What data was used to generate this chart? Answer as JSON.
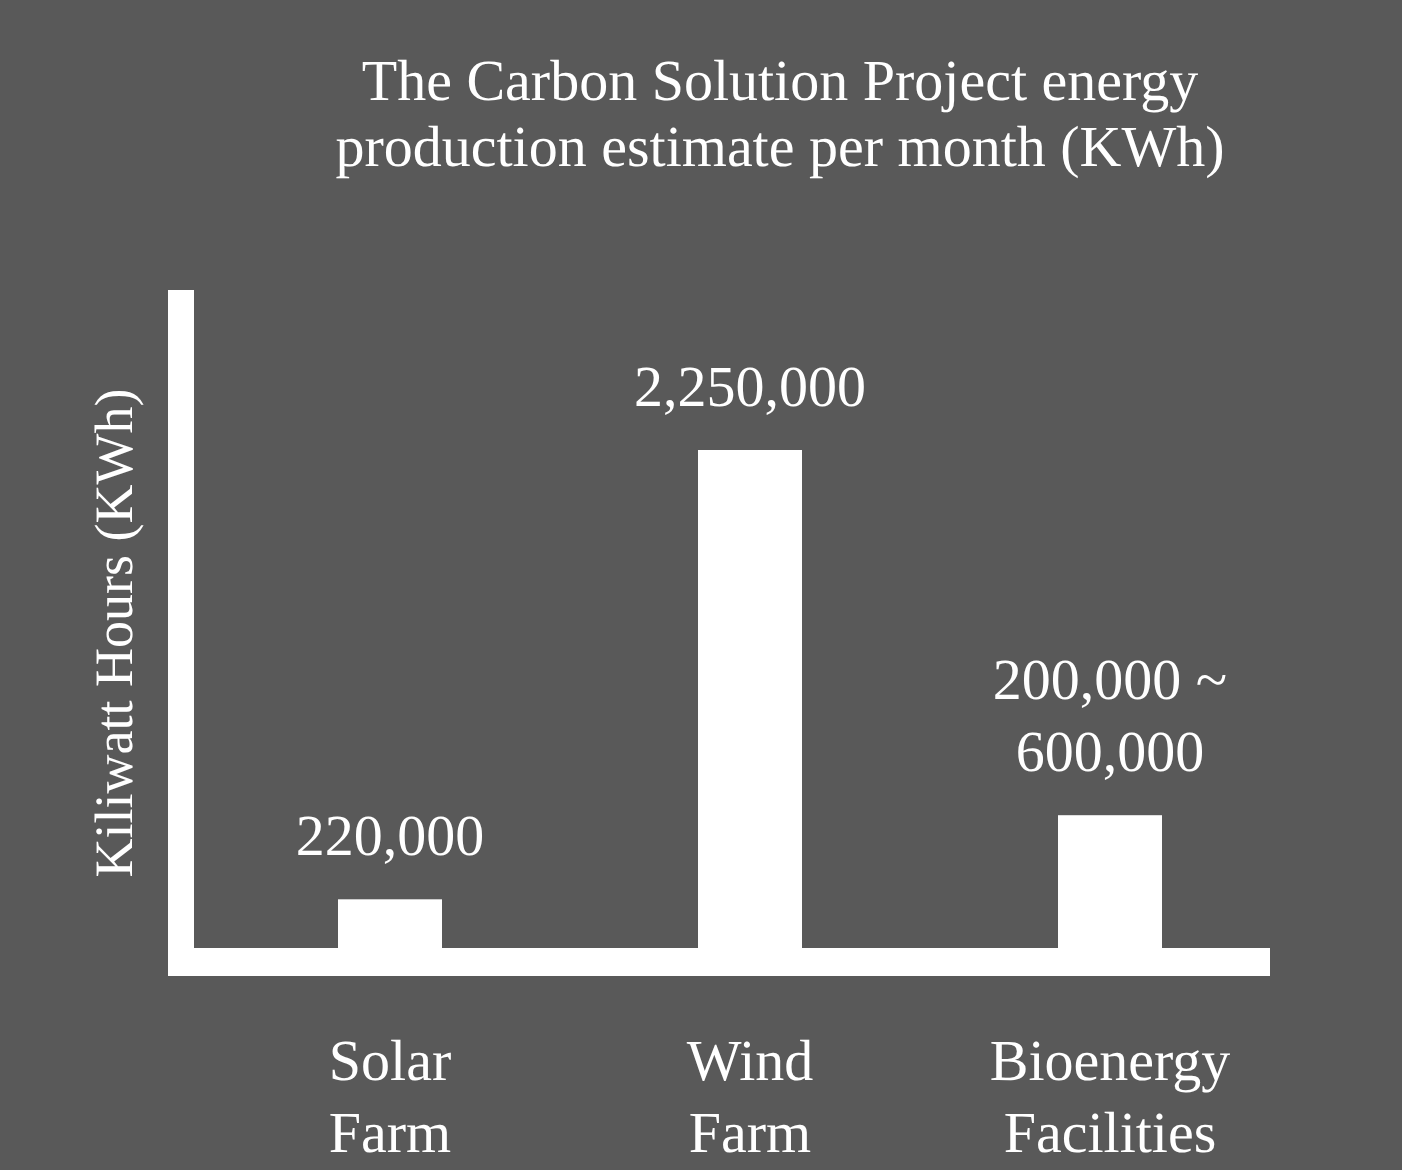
{
  "chart_data": {
    "type": "bar",
    "title": "The Carbon Solution Project energy production estimate per month (KWh)",
    "ylabel": "Kiliwatt Hours (KWh)",
    "categories": [
      "Solar Farm",
      "Wind Farm",
      "Bioenergy Facilities"
    ],
    "values": [
      220000,
      2250000,
      600000
    ],
    "value_labels": [
      "220,000",
      "2,250,000",
      "200,000 ~ 600,000"
    ],
    "color": "#ffffff"
  }
}
